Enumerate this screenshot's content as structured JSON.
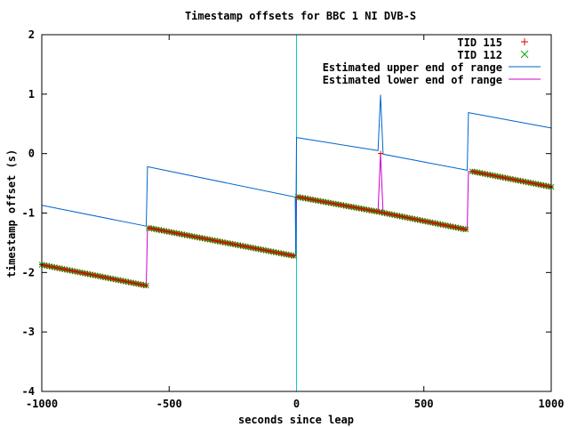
{
  "chart_data": {
    "type": "line",
    "title": "Timestamp offsets for BBC 1 NI DVB-S",
    "xlabel": "seconds since leap",
    "ylabel": "timestamp offset (s)",
    "xlim": [
      -1000,
      1000
    ],
    "ylim": [
      -4,
      2
    ],
    "xticks": [
      -1000,
      -500,
      0,
      500,
      1000
    ],
    "yticks": [
      -4,
      -3,
      -2,
      -1,
      0,
      1,
      2
    ],
    "xtick_labels": [
      "-1000",
      "-500",
      "0",
      "500",
      "1000"
    ],
    "ytick_labels": [
      "-4",
      "-3",
      "-2",
      "-1",
      "0",
      "1",
      "2"
    ],
    "grid": false,
    "legend_position": "top-right",
    "vertical_marker": {
      "x": 0,
      "color": "#00cccc"
    },
    "series": [
      {
        "name": "TID 115",
        "kind": "points",
        "marker": "+",
        "color": "#dd0000",
        "segments": [
          {
            "x_start": -1000,
            "x_end": -590,
            "y_start": -1.87,
            "y_end": -2.22
          },
          {
            "x_start": -580,
            "x_end": -10,
            "y_start": -1.25,
            "y_end": -1.72
          },
          {
            "x_start": 5,
            "x_end": 335,
            "y_start": -0.73,
            "y_end": -0.99
          },
          {
            "x_start": 345,
            "x_end": 670,
            "y_start": -1.0,
            "y_end": -1.28
          },
          {
            "x_start": 690,
            "x_end": 1000,
            "y_start": -0.3,
            "y_end": -0.56
          }
        ],
        "isolated_points": [
          {
            "x": 330,
            "y": 0.0
          }
        ]
      },
      {
        "name": "TID 112",
        "kind": "points",
        "marker": "x",
        "color": "#00aa00",
        "segments": [
          {
            "x_start": -1000,
            "x_end": -590,
            "y_start": -1.87,
            "y_end": -2.22
          },
          {
            "x_start": -580,
            "x_end": -10,
            "y_start": -1.25,
            "y_end": -1.72
          },
          {
            "x_start": 5,
            "x_end": 335,
            "y_start": -0.73,
            "y_end": -0.99
          },
          {
            "x_start": 345,
            "x_end": 670,
            "y_start": -1.0,
            "y_end": -1.28
          },
          {
            "x_start": 690,
            "x_end": 1000,
            "y_start": -0.3,
            "y_end": -0.56
          }
        ],
        "isolated_points": []
      },
      {
        "name": "Estimated upper end of range",
        "kind": "line",
        "color": "#0066cc",
        "x": [
          -1000,
          -590,
          -585,
          -5,
          -3,
          0,
          320,
          330,
          340,
          670,
          675,
          1000
        ],
        "y": [
          -0.87,
          -1.22,
          -0.22,
          -0.73,
          -1.7,
          0.27,
          0.05,
          0.99,
          -0.01,
          -0.28,
          0.69,
          0.43
        ]
      },
      {
        "name": "Estimated lower end of range",
        "kind": "line",
        "color": "#cc00cc",
        "x": [
          -1000,
          -590,
          -585,
          -5,
          -3,
          0,
          320,
          330,
          340,
          670,
          675,
          1000
        ],
        "y": [
          -1.87,
          -2.22,
          -1.25,
          -1.72,
          -1.7,
          -0.73,
          -0.97,
          0.0,
          -1.0,
          -1.28,
          -0.3,
          -0.56
        ]
      }
    ]
  }
}
